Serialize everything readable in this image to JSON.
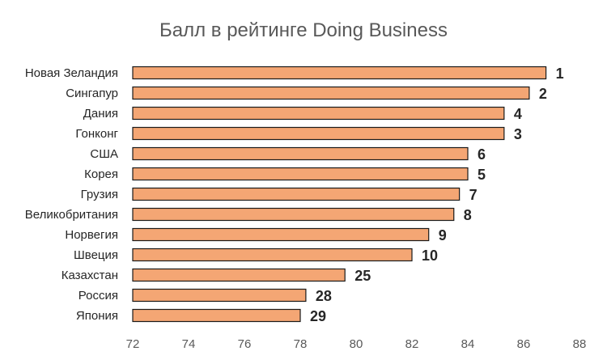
{
  "chart_data": {
    "type": "bar",
    "orientation": "horizontal",
    "title": "Балл в рейтинге Doing Business",
    "xlabel": "",
    "ylabel": "",
    "xlim": [
      72,
      88
    ],
    "xticks": [
      72,
      74,
      76,
      78,
      80,
      82,
      84,
      86,
      88
    ],
    "grid": false,
    "legend": "none",
    "bar_color": "#F4A674",
    "bar_edge_color": "#1a1a1a",
    "categories": [
      "Новая Зеландия",
      "Сингапур",
      "Дания",
      "Гонконг",
      "США",
      "Корея",
      "Грузия",
      "Великобритания",
      "Норвегия",
      "Швеция",
      "Казахстан",
      "Россия",
      "Япония"
    ],
    "values": [
      86.8,
      86.2,
      85.3,
      85.3,
      84.0,
      84.0,
      83.7,
      83.5,
      82.6,
      82.0,
      79.6,
      78.2,
      78.0
    ],
    "data_labels": [
      "1",
      "2",
      "4",
      "3",
      "6",
      "5",
      "7",
      "8",
      "9",
      "10",
      "25",
      "28",
      "29"
    ]
  }
}
